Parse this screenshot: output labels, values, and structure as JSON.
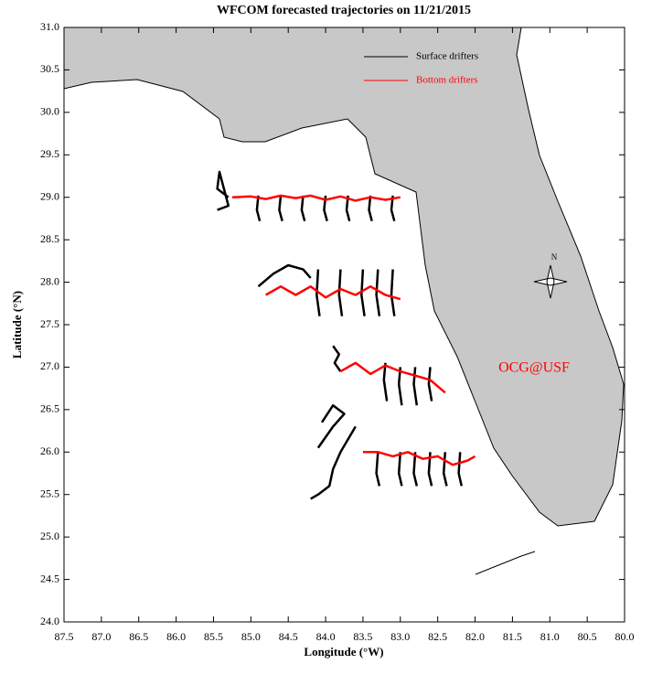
{
  "chart_data": {
    "type": "trajectory",
    "title": "WFCOM forecasted trajectories on 11/21/2015",
    "x_label": "Longitude (°W)",
    "y_label": "Latitude (°N)",
    "annotation": "OCG@USF",
    "compass_label": "N",
    "xlim": [
      87.5,
      80.0
    ],
    "ylim": [
      24.0,
      31.0
    ],
    "xticks": [
      87.5,
      {
        "value": 87,
        "label": "87.0"
      },
      86.5,
      {
        "value": 86,
        "label": "86.0"
      },
      85.5,
      {
        "value": 85,
        "label": "85.0"
      },
      84.5,
      {
        "value": 84,
        "label": "84.0"
      },
      83.5,
      {
        "value": 83,
        "label": "83.0"
      },
      82.5,
      {
        "value": 82,
        "label": "82.0"
      },
      81.5,
      {
        "value": 81,
        "label": "81.0"
      },
      80.5,
      {
        "value": 80,
        "label": "80.0"
      }
    ],
    "yticks": [
      {
        "value": 24,
        "label": "24.0"
      },
      24.5,
      {
        "value": 25,
        "label": "25.0"
      },
      25.5,
      {
        "value": 26,
        "label": "26.0"
      },
      26.5,
      {
        "value": 27,
        "label": "27.0"
      },
      27.5,
      {
        "value": 28,
        "label": "28.0"
      },
      28.5,
      {
        "value": 29,
        "label": "29.0"
      },
      29.5,
      {
        "value": 30,
        "label": "30.0"
      },
      30.5,
      {
        "value": 31,
        "label": "31.0"
      }
    ],
    "series": [
      {
        "name": "Surface drifters",
        "color": "#000000",
        "tracks": [
          {
            "x": [
              85.3,
              85.45,
              85.42,
              85.3,
              85.45
            ],
            "y": [
              29.0,
              29.1,
              29.3,
              28.9,
              28.85
            ]
          },
          {
            "x": [
              84.9,
              84.92,
              84.88
            ],
            "y": [
              29.02,
              28.85,
              28.72
            ]
          },
          {
            "x": [
              84.6,
              84.62,
              84.58
            ],
            "y": [
              29.02,
              28.85,
              28.72
            ]
          },
          {
            "x": [
              84.3,
              84.32,
              84.28
            ],
            "y": [
              29.02,
              28.85,
              28.72
            ]
          },
          {
            "x": [
              84.0,
              84.02,
              83.98
            ],
            "y": [
              29.02,
              28.85,
              28.72
            ]
          },
          {
            "x": [
              83.7,
              83.72,
              83.68
            ],
            "y": [
              29.02,
              28.85,
              28.72
            ]
          },
          {
            "x": [
              83.4,
              83.42,
              83.38
            ],
            "y": [
              29.02,
              28.85,
              28.72
            ]
          },
          {
            "x": [
              83.1,
              83.12,
              83.08
            ],
            "y": [
              29.02,
              28.85,
              28.72
            ]
          },
          {
            "x": [
              84.9,
              84.7,
              84.5,
              84.3,
              84.2
            ],
            "y": [
              27.95,
              28.1,
              28.2,
              28.15,
              28.05
            ]
          },
          {
            "x": [
              84.1,
              84.12,
              84.08
            ],
            "y": [
              28.15,
              27.85,
              27.6
            ]
          },
          {
            "x": [
              83.8,
              83.82,
              83.78
            ],
            "y": [
              28.15,
              27.85,
              27.6
            ]
          },
          {
            "x": [
              83.5,
              83.52,
              83.48
            ],
            "y": [
              28.15,
              27.85,
              27.6
            ]
          },
          {
            "x": [
              83.3,
              83.32,
              83.28
            ],
            "y": [
              28.15,
              27.85,
              27.6
            ]
          },
          {
            "x": [
              83.1,
              83.12,
              83.08
            ],
            "y": [
              28.15,
              27.85,
              27.6
            ]
          },
          {
            "x": [
              83.9,
              83.82,
              83.88,
              83.8
            ],
            "y": [
              27.25,
              27.15,
              27.05,
              26.95
            ]
          },
          {
            "x": [
              83.2,
              83.22,
              83.18
            ],
            "y": [
              27.05,
              26.85,
              26.6
            ]
          },
          {
            "x": [
              83.0,
              83.02,
              82.98
            ],
            "y": [
              27.0,
              26.8,
              26.55
            ]
          },
          {
            "x": [
              82.8,
              82.82,
              82.78
            ],
            "y": [
              27.0,
              26.8,
              26.55
            ]
          },
          {
            "x": [
              82.6,
              82.62,
              82.58
            ],
            "y": [
              27.0,
              26.8,
              26.6
            ]
          },
          {
            "x": [
              83.6,
              83.8,
              83.9,
              83.95,
              84.1,
              84.2
            ],
            "y": [
              26.3,
              26.0,
              25.8,
              25.6,
              25.5,
              25.45
            ]
          },
          {
            "x": [
              84.1,
              83.9,
              83.75,
              83.9,
              84.05
            ],
            "y": [
              26.05,
              26.3,
              26.45,
              26.55,
              26.35
            ]
          },
          {
            "x": [
              83.3,
              83.32,
              83.28
            ],
            "y": [
              26.0,
              25.75,
              25.6
            ]
          },
          {
            "x": [
              83.0,
              83.02,
              82.98
            ],
            "y": [
              26.0,
              25.75,
              25.6
            ]
          },
          {
            "x": [
              82.8,
              82.82,
              82.78
            ],
            "y": [
              26.0,
              25.75,
              25.6
            ]
          },
          {
            "x": [
              82.6,
              82.62,
              82.58
            ],
            "y": [
              26.0,
              25.75,
              25.6
            ]
          },
          {
            "x": [
              82.4,
              82.42,
              82.38
            ],
            "y": [
              26.0,
              25.75,
              25.6
            ]
          },
          {
            "x": [
              82.2,
              82.22,
              82.18
            ],
            "y": [
              26.0,
              25.75,
              25.6
            ]
          }
        ]
      },
      {
        "name": "Bottom drifters",
        "color": "#ff0000",
        "tracks": [
          {
            "x": [
              85.25,
              85.0,
              84.8,
              84.6,
              84.4,
              84.2,
              84.0,
              83.8,
              83.6,
              83.4,
              83.2,
              83.0
            ],
            "y": [
              29.0,
              29.01,
              28.98,
              29.02,
              28.99,
              29.02,
              28.97,
              29.01,
              28.96,
              29.0,
              28.97,
              29.0
            ]
          },
          {
            "x": [
              84.8,
              84.6,
              84.4,
              84.2,
              84.0,
              83.8,
              83.6,
              83.4,
              83.2,
              83.0
            ],
            "y": [
              27.85,
              27.95,
              27.85,
              27.95,
              27.82,
              27.92,
              27.85,
              27.95,
              27.85,
              27.8
            ]
          },
          {
            "x": [
              83.8,
              83.6,
              83.4,
              83.2,
              83.0,
              82.8,
              82.6,
              82.4
            ],
            "y": [
              26.95,
              27.05,
              26.92,
              27.02,
              26.95,
              26.9,
              26.85,
              26.7
            ]
          },
          {
            "x": [
              83.5,
              83.3,
              83.1,
              82.9,
              82.7,
              82.5,
              82.3,
              82.1,
              82.0
            ],
            "y": [
              26.0,
              26.0,
              25.95,
              26.0,
              25.92,
              25.95,
              25.85,
              25.9,
              25.95
            ]
          }
        ]
      }
    ]
  }
}
